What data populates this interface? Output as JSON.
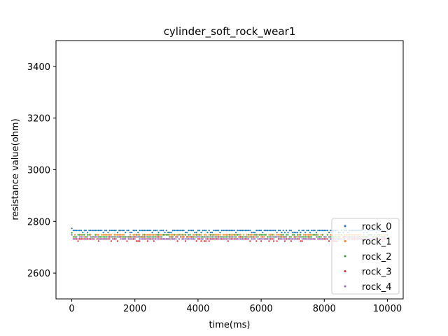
{
  "chart_data": {
    "type": "scatter",
    "title": "cylinder_soft_rock_wear1",
    "xlabel": "time(ms)",
    "ylabel": "resistance value(ohm)",
    "xlim": [
      -500,
      10500
    ],
    "ylim": [
      2500,
      3500
    ],
    "xticks": [
      "0",
      "2000",
      "4000",
      "6000",
      "8000",
      "10000"
    ],
    "yticks": [
      "2600",
      "2800",
      "3000",
      "3200",
      "3400"
    ],
    "legend_position": "lower-right",
    "grid": false,
    "colors": {
      "rock_0": "#1f77b4",
      "rock_1": "#ff7f0e",
      "rock_2": "#2ca02c",
      "rock_3": "#d62728",
      "rock_4": "#9467bd"
    },
    "series": [
      {
        "name": "rock_0",
        "x_range": [
          0,
          10000
        ],
        "levels": [
          2765,
          2757
        ],
        "typical": 2765
      },
      {
        "name": "rock_1",
        "x_range": [
          0,
          10000
        ],
        "levels": [
          2748,
          2740
        ],
        "typical": 2748
      },
      {
        "name": "rock_2",
        "x_range": [
          0,
          10000
        ],
        "levels": [
          2748,
          2740
        ],
        "typical": 2740
      },
      {
        "name": "rock_3",
        "x_range": [
          0,
          10000
        ],
        "levels": [
          2740,
          2732,
          2724
        ],
        "typical": 2732
      },
      {
        "name": "rock_4",
        "x_range": [
          0,
          10000
        ],
        "levels": [
          2740,
          2732
        ],
        "typical": 2732
      }
    ]
  }
}
